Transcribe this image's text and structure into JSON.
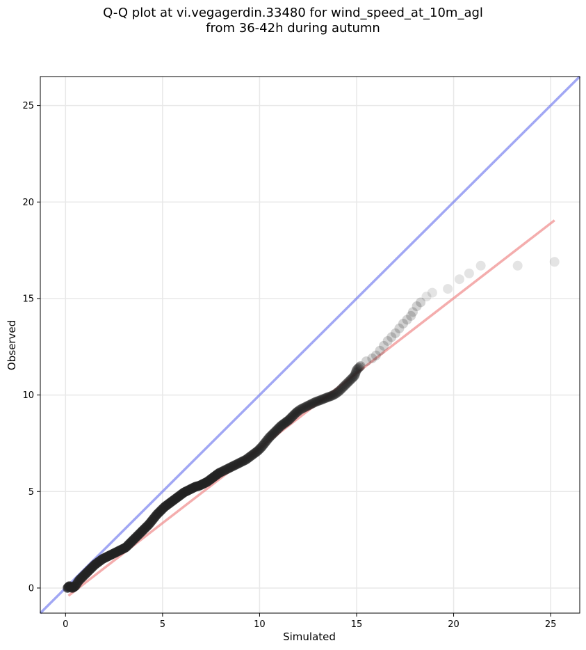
{
  "chart_data": {
    "type": "scatter",
    "title_line1": "Q-Q plot at vi.vegagerdin.33480 for wind_speed_at_10m_agl",
    "title_line2": "from 36-42h during autumn",
    "xlabel": "Simulated",
    "ylabel": "Observed",
    "xlim": [
      -1.3,
      26.5
    ],
    "ylim": [
      -1.3,
      26.5
    ],
    "xticks": [
      0,
      5,
      10,
      15,
      20,
      25
    ],
    "yticks": [
      0,
      5,
      10,
      15,
      20,
      25
    ],
    "grid": true,
    "colors": {
      "points": "#222222",
      "identity_line": "#6f78ee",
      "fit_line": "#f08a8a",
      "grid": "#e8e8e8"
    },
    "identity_line": {
      "x": [
        -1.3,
        26.5
      ],
      "y": [
        -1.3,
        26.5
      ]
    },
    "fit_line": {
      "x": [
        0.15,
        25.2
      ],
      "y": [
        -0.4,
        19.05
      ]
    },
    "series": [
      {
        "x": [
          0.1,
          0.2,
          0.35,
          0.5,
          0.7,
          0.9,
          1.1,
          1.3,
          1.5,
          1.7,
          1.9,
          2.1,
          2.3,
          2.5,
          2.7,
          2.9,
          3.1,
          3.3,
          3.5,
          3.7,
          3.9,
          4.1,
          4.3,
          4.5,
          4.7,
          4.9,
          5.1,
          5.3,
          5.5,
          5.7,
          5.9,
          6.1,
          6.3,
          6.5,
          6.7,
          6.9,
          7.1,
          7.3,
          7.5,
          7.7,
          7.9,
          8.1,
          8.3,
          8.5,
          8.7,
          8.9,
          9.1,
          9.3,
          9.5,
          9.7,
          9.9,
          10.1,
          10.3,
          10.5,
          10.7,
          10.9,
          11.1,
          11.3,
          11.5,
          11.7,
          11.9,
          12.1,
          12.3,
          12.5,
          12.7,
          12.9,
          13.1,
          13.3,
          13.5,
          13.7,
          13.9,
          14.1,
          14.3,
          14.5,
          14.7,
          14.9,
          15.0,
          15.2,
          15.5,
          15.8,
          16.0,
          16.2,
          16.4,
          16.6,
          16.8,
          17.0,
          17.2,
          17.4,
          17.6,
          17.8,
          17.9,
          18.1,
          18.3,
          18.6,
          18.9,
          19.7,
          20.3,
          20.8,
          21.4,
          23.3,
          25.2
        ],
        "y": [
          0.0,
          0.1,
          0.0,
          0.1,
          0.4,
          0.6,
          0.8,
          1.0,
          1.2,
          1.35,
          1.5,
          1.6,
          1.7,
          1.8,
          1.9,
          2.0,
          2.1,
          2.3,
          2.5,
          2.7,
          2.9,
          3.1,
          3.3,
          3.55,
          3.8,
          4.0,
          4.2,
          4.35,
          4.5,
          4.65,
          4.8,
          4.95,
          5.05,
          5.15,
          5.25,
          5.3,
          5.4,
          5.5,
          5.65,
          5.8,
          5.95,
          6.05,
          6.15,
          6.25,
          6.35,
          6.45,
          6.55,
          6.65,
          6.8,
          6.95,
          7.1,
          7.3,
          7.55,
          7.8,
          8.0,
          8.2,
          8.4,
          8.55,
          8.7,
          8.9,
          9.1,
          9.25,
          9.35,
          9.45,
          9.55,
          9.65,
          9.72,
          9.8,
          9.88,
          9.95,
          10.05,
          10.2,
          10.4,
          10.6,
          10.8,
          11.0,
          11.3,
          11.5,
          11.75,
          11.9,
          12.05,
          12.3,
          12.55,
          12.8,
          13.0,
          13.2,
          13.45,
          13.7,
          13.9,
          14.1,
          14.3,
          14.6,
          14.8,
          15.1,
          15.3,
          15.5,
          16.0,
          16.3,
          16.7,
          16.7,
          16.9
        ]
      }
    ]
  }
}
